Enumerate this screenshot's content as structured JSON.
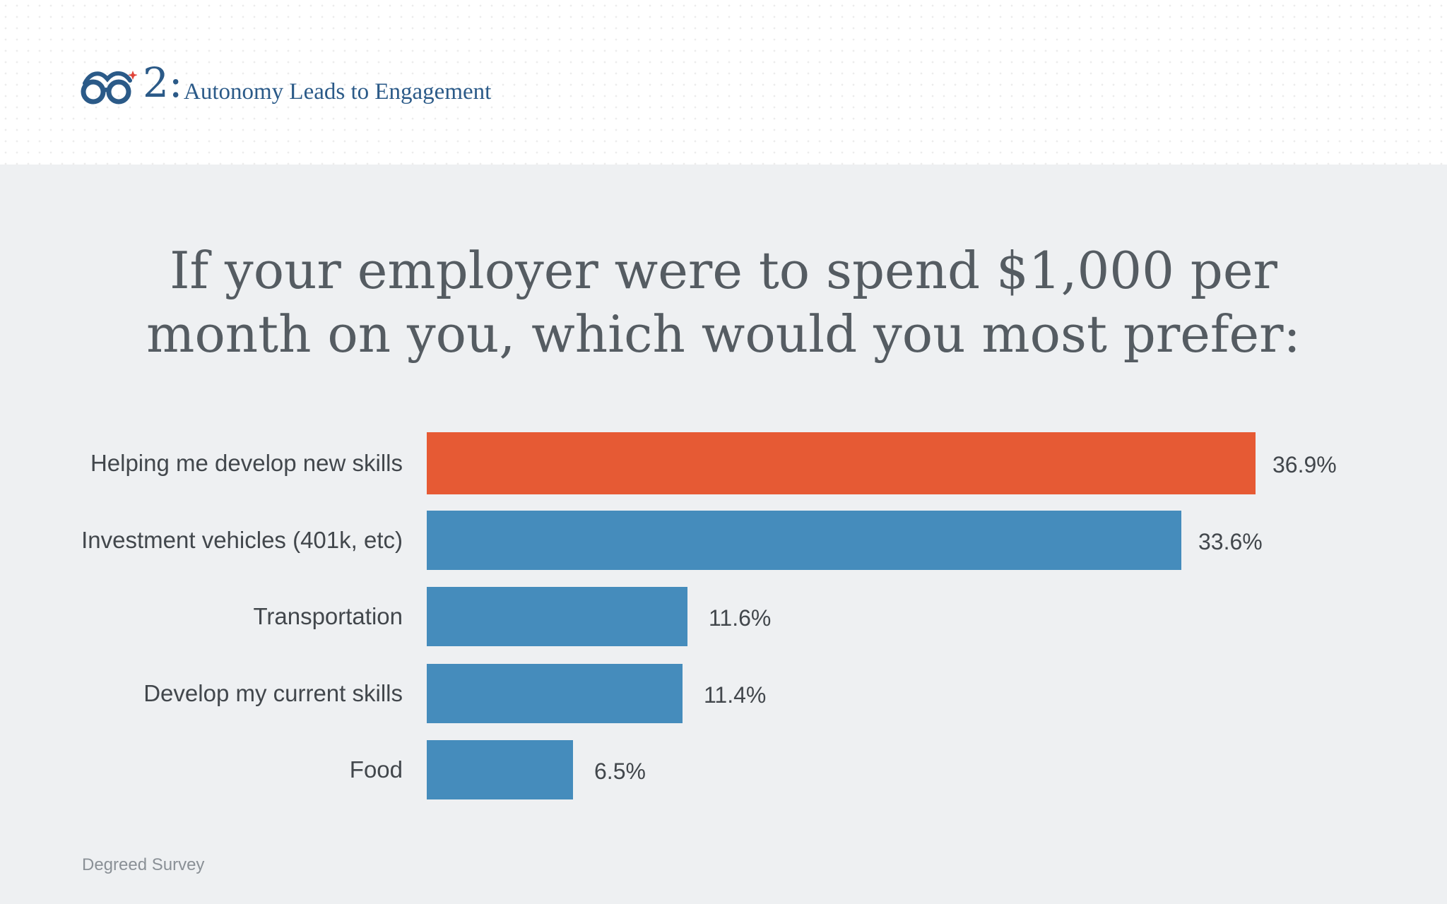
{
  "header": {
    "section_number": "2:",
    "section_title": "Autonomy Leads to Engagement",
    "logo_icon": "glasses-icon",
    "colors": {
      "brand_blue": "#2b5a88",
      "accent_red": "#e0443a"
    }
  },
  "chart_data": {
    "type": "bar",
    "orientation": "horizontal",
    "title_lines": [
      "If your employer were to spend $1,000 per",
      "month on you, which would you most prefer:"
    ],
    "categories": [
      "Helping me develop new skills",
      "Investment vehicles (401k, etc)",
      "Transportation",
      "Develop my current skills",
      "Food"
    ],
    "values": [
      36.9,
      33.6,
      11.6,
      11.4,
      6.5
    ],
    "value_labels": [
      "36.9%",
      "33.6%",
      "11.6%",
      "11.4%",
      "6.5%"
    ],
    "colors": [
      "#e65a34",
      "#458cbc",
      "#458cbc",
      "#458cbc",
      "#458cbc"
    ],
    "xlim": [
      0,
      36.9
    ],
    "unit": "%",
    "grid": false,
    "legend": "none"
  },
  "footer": {
    "source": "Degreed Survey"
  }
}
